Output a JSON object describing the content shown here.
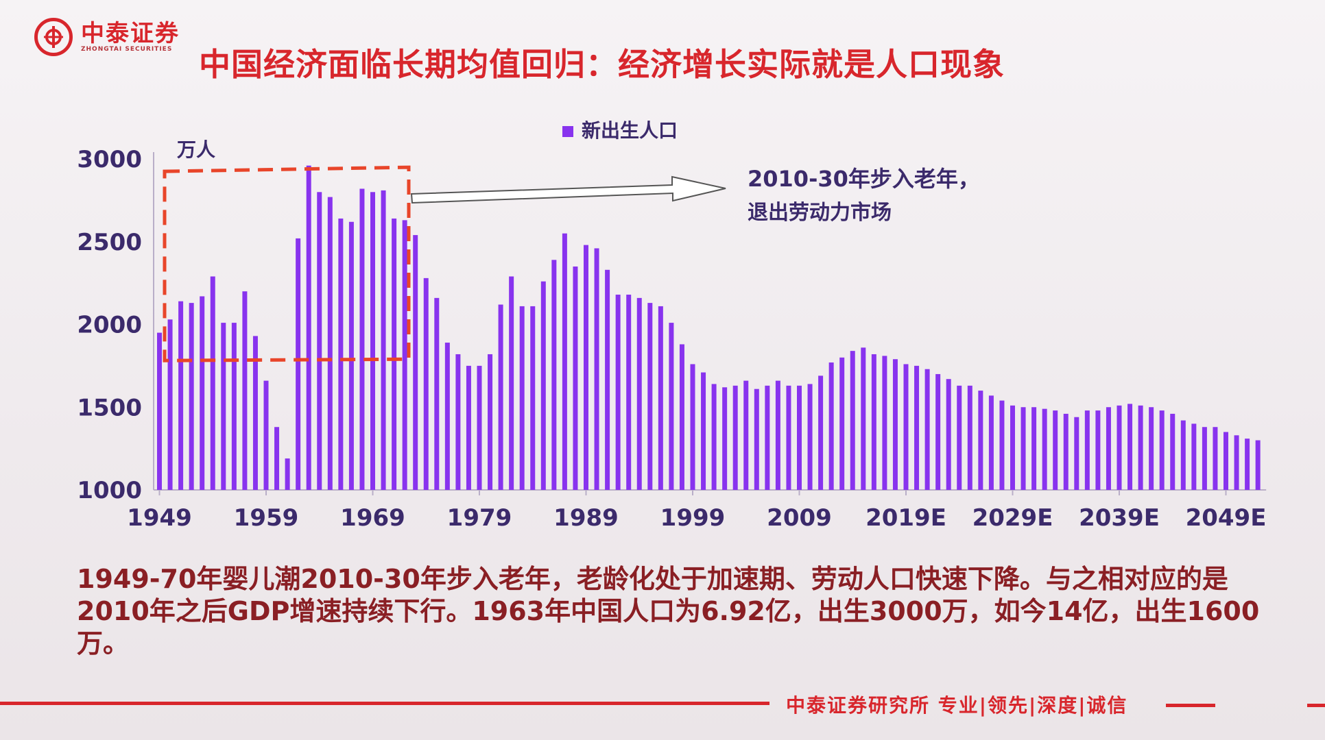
{
  "header": {
    "logo_cn": "中泰证券",
    "logo_en": "ZHONGTAI SECURITIES",
    "title": "中国经济面临长期均值回归：经济增长实际就是人口现象"
  },
  "body_text": "1949-70年婴儿潮2010-30年步入老年，老龄化处于加速期、劳动人口快速下降。与之相对应的是2010年之后GDP增速持续下行。1963年中国人口为6.92亿，出生3000万，如今14亿，出生1600万。",
  "footer": {
    "text": "中泰证券研究所 专业|领先|深度|诚信"
  },
  "colors": {
    "brand_red": "#d8262c",
    "bar_purple": "#8833ee",
    "dark_red_text": "#8a1f24",
    "axis_text": "#3b2a6b"
  },
  "chart_data": {
    "type": "bar",
    "unit_label": "万人",
    "series": [
      {
        "name": "新出生人口",
        "color": "#8833ee"
      }
    ],
    "ylim": [
      1000,
      3000
    ],
    "yticks": [
      1000,
      1500,
      2000,
      2500,
      3000
    ],
    "xtick_labels": [
      {
        "year": 1949,
        "label": "1949"
      },
      {
        "year": 1959,
        "label": "1959"
      },
      {
        "year": 1969,
        "label": "1969"
      },
      {
        "year": 1979,
        "label": "1979"
      },
      {
        "year": 1989,
        "label": "1989"
      },
      {
        "year": 1999,
        "label": "1999"
      },
      {
        "year": 2009,
        "label": "2009"
      },
      {
        "year": 2019,
        "label": "2019E"
      },
      {
        "year": 2029,
        "label": "2029E"
      },
      {
        "year": 2039,
        "label": "2039E"
      },
      {
        "year": 2049,
        "label": "2049E"
      }
    ],
    "start_year": 1949,
    "values": [
      1950,
      2030,
      2140,
      2130,
      2170,
      2290,
      2010,
      2010,
      2200,
      1930,
      1660,
      1380,
      1190,
      2520,
      2960,
      2800,
      2770,
      2640,
      2620,
      2820,
      2800,
      2810,
      2640,
      2630,
      2540,
      2280,
      2160,
      1890,
      1820,
      1750,
      1750,
      1820,
      2120,
      2290,
      2110,
      2110,
      2260,
      2390,
      2550,
      2350,
      2480,
      2460,
      2330,
      2180,
      2180,
      2160,
      2130,
      2110,
      2010,
      1880,
      1760,
      1710,
      1640,
      1620,
      1630,
      1660,
      1610,
      1630,
      1660,
      1630,
      1630,
      1640,
      1690,
      1770,
      1800,
      1840,
      1860,
      1820,
      1810,
      1790,
      1760,
      1750,
      1730,
      1700,
      1670,
      1630,
      1630,
      1600,
      1570,
      1540,
      1510,
      1500,
      1500,
      1490,
      1480,
      1460,
      1440,
      1480,
      1480,
      1500,
      1510,
      1520,
      1510,
      1500,
      1480,
      1460,
      1420,
      1400,
      1380,
      1380,
      1350,
      1330,
      1310,
      1300
    ],
    "annotation": {
      "line1": "2010-30年步入老年，",
      "line2": "退出劳动力市场"
    }
  }
}
